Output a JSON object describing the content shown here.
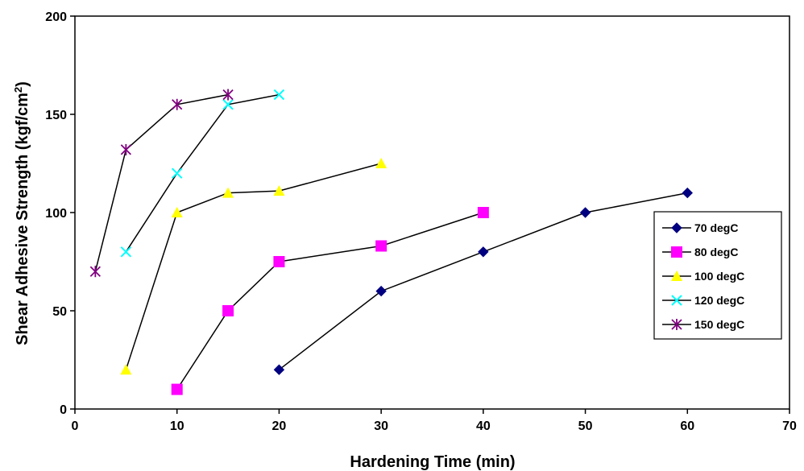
{
  "chart_data": {
    "type": "line",
    "xlabel": "Hardening Time (min)",
    "ylabel": "Shear Adhesive Strength (kgf/cm",
    "ylabel_sup": "2",
    "ylabel_end": ")",
    "xlim": [
      0,
      70
    ],
    "ylim": [
      0,
      200
    ],
    "x_ticks": [
      0,
      10,
      20,
      30,
      40,
      50,
      60,
      70
    ],
    "y_ticks": [
      0,
      50,
      100,
      150,
      200
    ],
    "grid": false,
    "legend_position": "right",
    "series": [
      {
        "name": "70 degC",
        "color": "#000080",
        "marker": "diamond",
        "x": [
          20,
          30,
          40,
          50,
          60
        ],
        "y": [
          20,
          60,
          80,
          100,
          110
        ]
      },
      {
        "name": "80 degC",
        "color": "#ff00ff",
        "marker": "square",
        "x": [
          10,
          15,
          20,
          30,
          40
        ],
        "y": [
          10,
          50,
          75,
          83,
          100
        ]
      },
      {
        "name": "100 degC",
        "color": "#ffff00",
        "marker": "triangle",
        "x": [
          5,
          10,
          15,
          20,
          30
        ],
        "y": [
          20,
          100,
          110,
          111,
          125
        ]
      },
      {
        "name": "120 degC",
        "color": "#00ffff",
        "marker": "x",
        "x": [
          5,
          10,
          15,
          20
        ],
        "y": [
          80,
          120,
          155,
          160
        ]
      },
      {
        "name": "150 degC",
        "color": "#800080",
        "marker": "star",
        "x": [
          2,
          5,
          10,
          15
        ],
        "y": [
          70,
          132,
          155,
          160
        ]
      }
    ]
  }
}
